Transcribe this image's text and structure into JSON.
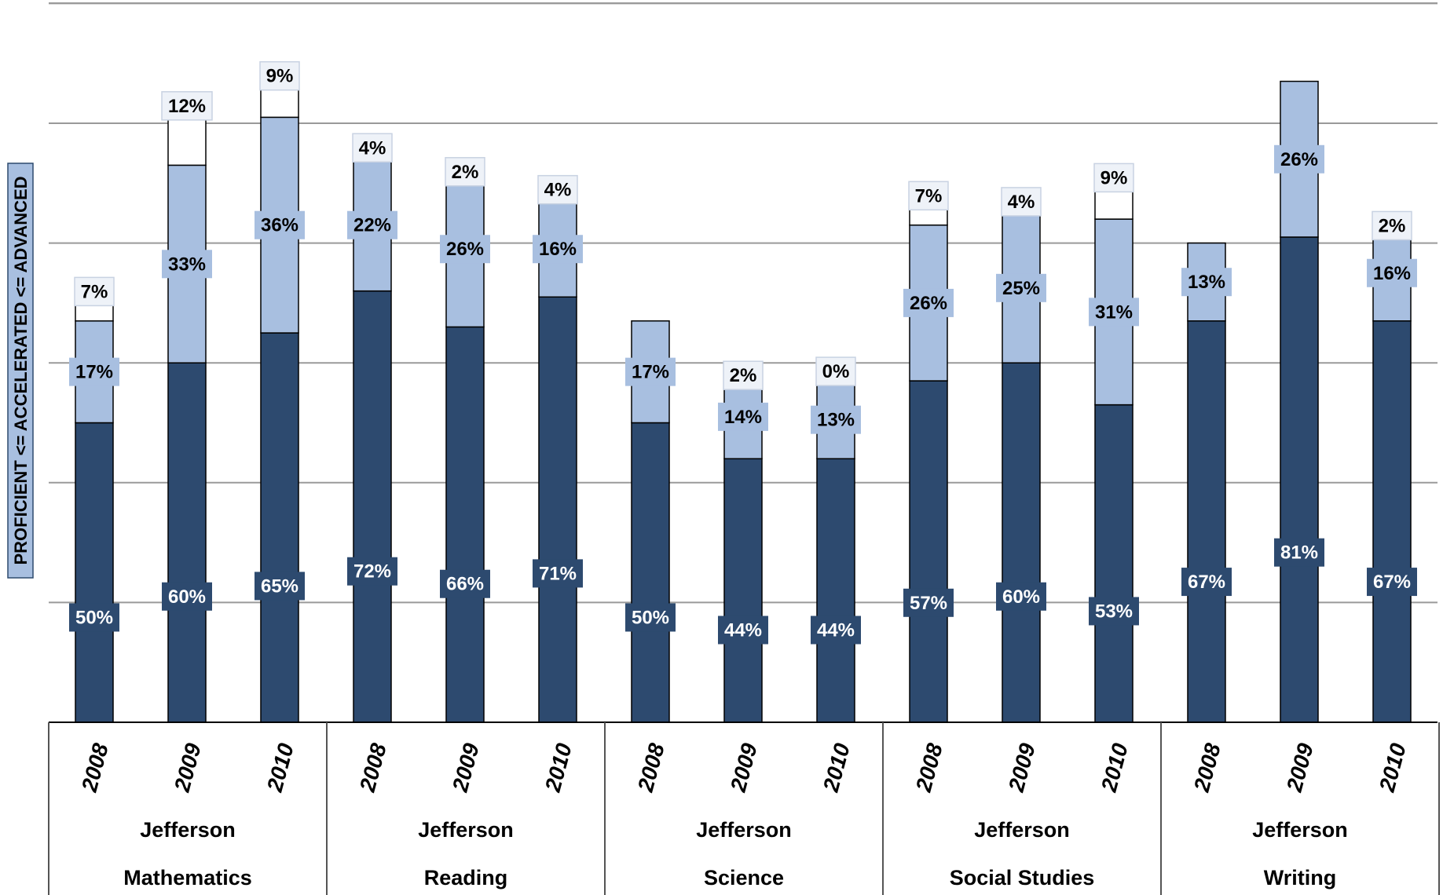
{
  "chart_data": {
    "type": "bar",
    "stacked": true,
    "ylabel": "PROFICIENT <= ACCELERATED <= ADVANCED",
    "ylim": [
      0,
      120
    ],
    "grid": true,
    "groups": [
      {
        "school": "Jefferson",
        "subject": "Mathematics",
        "years": [
          "2008",
          "2009",
          "2010"
        ]
      },
      {
        "school": "Jefferson",
        "subject": "Reading",
        "years": [
          "2008",
          "2009",
          "2010"
        ]
      },
      {
        "school": "Jefferson",
        "subject": "Science",
        "years": [
          "2008",
          "2009",
          "2010"
        ]
      },
      {
        "school": "Jefferson",
        "subject": "Social Studies",
        "years": [
          "2008",
          "2009",
          "2010"
        ]
      },
      {
        "school": "Jefferson",
        "subject": "Writing",
        "years": [
          "2008",
          "2009",
          "2010"
        ]
      }
    ],
    "series": [
      {
        "key": "proficient",
        "color": "#2d4a6f",
        "label_bg": "#2d4a6f",
        "label_color": "#ffffff",
        "values": [
          50,
          60,
          65,
          72,
          66,
          71,
          50,
          44,
          44,
          57,
          60,
          53,
          67,
          81,
          67
        ],
        "labels": [
          "50%",
          "60%",
          "65%",
          "72%",
          "66%",
          "71%",
          "50%",
          "44%",
          "44%",
          "57%",
          "60%",
          "53%",
          "67%",
          "81%",
          "67%"
        ]
      },
      {
        "key": "accelerated",
        "color": "#a8bfe0",
        "label_bg": "#a8bfe0",
        "label_color": "#000000",
        "values": [
          17,
          33,
          36,
          22,
          26,
          16,
          17,
          14,
          13,
          26,
          25,
          31,
          13,
          26,
          16
        ],
        "labels": [
          "17%",
          "33%",
          "36%",
          "22%",
          "26%",
          "16%",
          "17%",
          "14%",
          "13%",
          "26%",
          "25%",
          "31%",
          "13%",
          "26%",
          "16%"
        ]
      },
      {
        "key": "advanced",
        "color": "#ffffff",
        "label_bg": "#eef2f8",
        "label_color": "#000000",
        "values": [
          7,
          12,
          9,
          4,
          2,
          4,
          0,
          2,
          0,
          7,
          4,
          9,
          0,
          0,
          2
        ],
        "labels": [
          "7%",
          "12%",
          "9%",
          "4%",
          "2%",
          "4%",
          "",
          "2%",
          "0%",
          "7%",
          "4%",
          "9%",
          "",
          "",
          "2%"
        ]
      }
    ]
  }
}
